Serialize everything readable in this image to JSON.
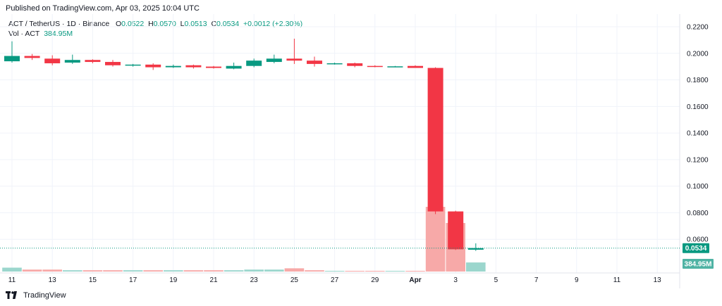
{
  "header": {
    "published": "Published on TradingView.com, Apr 03, 2025 10:04 UTC"
  },
  "legend": {
    "symbol": "ACT / TetherUS · 1D · Binance",
    "o_label": "O",
    "o_value": "0.0522",
    "h_label": "H",
    "h_value": "0.0570",
    "l_label": "L",
    "l_value": "0.0513",
    "c_label": "C",
    "c_value": "0.0534",
    "change": "+0.0012 (+2.30%)",
    "vol_label": "Vol · ACT",
    "vol_value": "384.95M"
  },
  "footer": {
    "brand": "TradingView"
  },
  "colors": {
    "up": "#089981",
    "down": "#f23645",
    "vol_up": "#9bd6cd",
    "vol_down": "#f7a9a8",
    "grid": "#f0f3fa",
    "axis_text": "#131722"
  },
  "chart_data": {
    "type": "candlestick",
    "price_range": [
      0.04,
      0.22
    ],
    "y_ticks": [
      "0.2200",
      "0.2000",
      "0.1800",
      "0.1600",
      "0.1400",
      "0.1200",
      "0.1000",
      "0.0800",
      "0.0600"
    ],
    "x_ticks": [
      "11",
      "13",
      "15",
      "17",
      "19",
      "21",
      "23",
      "25",
      "27",
      "29",
      "Apr",
      "3",
      "5",
      "7",
      "9",
      "11",
      "13"
    ],
    "last_price_label": "0.0534",
    "last_volume_label": "384.95M",
    "candles": [
      {
        "o": 0.194,
        "h": 0.209,
        "l": 0.193,
        "c": 0.198
      },
      {
        "o": 0.198,
        "h": 0.1995,
        "l": 0.195,
        "c": 0.1965
      },
      {
        "o": 0.196,
        "h": 0.1985,
        "l": 0.191,
        "c": 0.1925
      },
      {
        "o": 0.193,
        "h": 0.199,
        "l": 0.192,
        "c": 0.195
      },
      {
        "o": 0.195,
        "h": 0.1955,
        "l": 0.1925,
        "c": 0.1935
      },
      {
        "o": 0.1935,
        "h": 0.195,
        "l": 0.19,
        "c": 0.191
      },
      {
        "o": 0.191,
        "h": 0.192,
        "l": 0.19,
        "c": 0.1915
      },
      {
        "o": 0.1915,
        "h": 0.1925,
        "l": 0.1875,
        "c": 0.1895
      },
      {
        "o": 0.1895,
        "h": 0.1915,
        "l": 0.189,
        "c": 0.1905
      },
      {
        "o": 0.191,
        "h": 0.1915,
        "l": 0.1885,
        "c": 0.1895
      },
      {
        "o": 0.19,
        "h": 0.1905,
        "l": 0.1885,
        "c": 0.189
      },
      {
        "o": 0.1885,
        "h": 0.193,
        "l": 0.188,
        "c": 0.1905
      },
      {
        "o": 0.1905,
        "h": 0.196,
        "l": 0.1895,
        "c": 0.1945
      },
      {
        "o": 0.1935,
        "h": 0.199,
        "l": 0.1925,
        "c": 0.196
      },
      {
        "o": 0.196,
        "h": 0.211,
        "l": 0.192,
        "c": 0.1945
      },
      {
        "o": 0.1945,
        "h": 0.1975,
        "l": 0.19,
        "c": 0.192
      },
      {
        "o": 0.192,
        "h": 0.193,
        "l": 0.1915,
        "c": 0.1925
      },
      {
        "o": 0.1925,
        "h": 0.193,
        "l": 0.1895,
        "c": 0.1905
      },
      {
        "o": 0.1905,
        "h": 0.191,
        "l": 0.1895,
        "c": 0.19
      },
      {
        "o": 0.19,
        "h": 0.1905,
        "l": 0.1895,
        "c": 0.1902
      },
      {
        "o": 0.1905,
        "h": 0.191,
        "l": 0.189,
        "c": 0.189
      },
      {
        "o": 0.189,
        "h": 0.1895,
        "l": 0.079,
        "c": 0.081
      },
      {
        "o": 0.081,
        "h": 0.0815,
        "l": 0.052,
        "c": 0.0525
      },
      {
        "o": 0.0522,
        "h": 0.057,
        "l": 0.0513,
        "c": 0.0534
      }
    ],
    "volume_max": 100,
    "volumes": [
      6,
      3,
      3,
      2,
      2,
      2,
      2,
      2,
      2,
      2,
      2,
      2,
      3,
      3,
      5,
      2,
      1,
      1,
      1,
      1,
      1,
      100,
      75,
      14
    ]
  }
}
